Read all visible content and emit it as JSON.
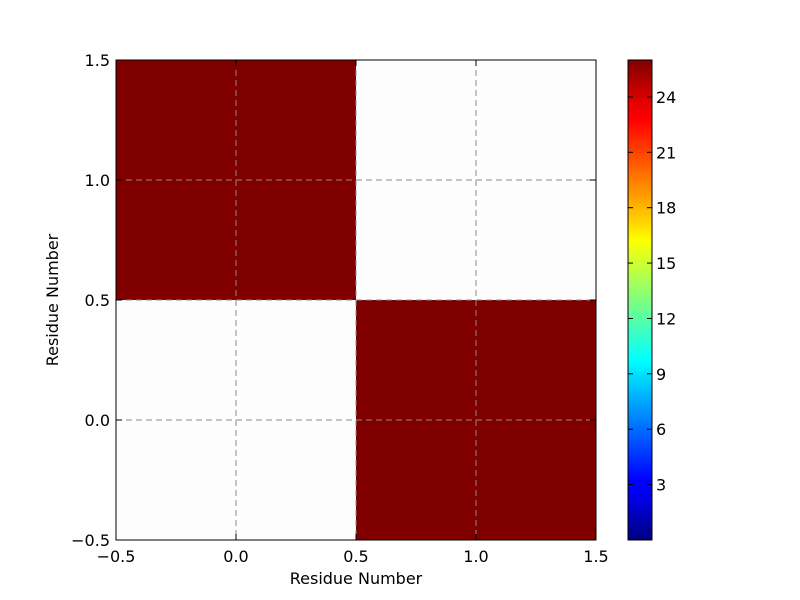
{
  "chart_data": {
    "type": "heatmap",
    "title": "",
    "xlabel": "Residue Number",
    "ylabel": "Residue Number",
    "xlim": [
      -0.5,
      1.5
    ],
    "ylim": [
      -0.5,
      1.5
    ],
    "xticks": [
      -0.5,
      0.0,
      0.5,
      1.0,
      1.5
    ],
    "xtick_labels": [
      "−0.5",
      "0.0",
      "0.5",
      "1.0",
      "1.5"
    ],
    "yticks": [
      -0.5,
      0.0,
      0.5,
      1.0,
      1.5
    ],
    "ytick_labels": [
      "−0.5",
      "0.0",
      "0.5",
      "1.0",
      "1.5"
    ],
    "grid": true,
    "colormap": "jet",
    "colorbar": {
      "min": 0,
      "max": 26,
      "ticks": [
        3,
        6,
        9,
        12,
        15,
        18,
        21,
        24
      ],
      "tick_labels": [
        "3",
        "6",
        "9",
        "12",
        "15",
        "18",
        "21",
        "24"
      ]
    },
    "cells": [
      {
        "x": 0,
        "y": 0,
        "value": null
      },
      {
        "x": 1,
        "y": 0,
        "value": 26
      },
      {
        "x": 0,
        "y": 1,
        "value": 26
      },
      {
        "x": 1,
        "y": 1,
        "value": null
      }
    ]
  }
}
